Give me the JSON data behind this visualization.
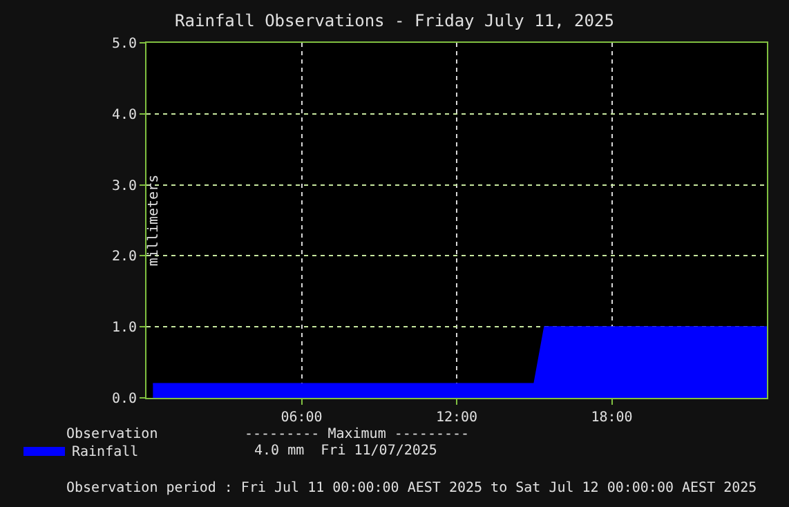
{
  "chart_data": {
    "type": "area",
    "title": "Rainfall Observations - Friday July 11, 2025",
    "ylabel": "millimeters",
    "x": [
      0.25,
      15.0,
      15.4,
      24.0
    ],
    "series": [
      {
        "name": "Rainfall",
        "color": "#0000ff",
        "values": [
          0.2,
          0.2,
          1.0,
          1.0
        ]
      }
    ],
    "xlim": [
      0,
      24
    ],
    "xticks": [
      {
        "value": 6,
        "label": "06:00"
      },
      {
        "value": 12,
        "label": "12:00"
      },
      {
        "value": 18,
        "label": "18:00"
      }
    ],
    "ylim": [
      0,
      5
    ],
    "yticks": [
      {
        "value": 0,
        "label": "0.0"
      },
      {
        "value": 1,
        "label": "1.0"
      },
      {
        "value": 2,
        "label": "2.0"
      },
      {
        "value": 3,
        "label": "3.0"
      },
      {
        "value": 4,
        "label": "4.0"
      },
      {
        "value": 5,
        "label": "5.0"
      }
    ],
    "grid": true,
    "legend": "bottom left",
    "annotations": [
      "Observation",
      "--------- Maximum ---------",
      "4.0 mm  Fri 11/07/2025",
      "Observation period : Fri Jul 11 00:00:00 AEST 2025 to Sat Jul 12 00:00:00 AEST 2025"
    ]
  }
}
